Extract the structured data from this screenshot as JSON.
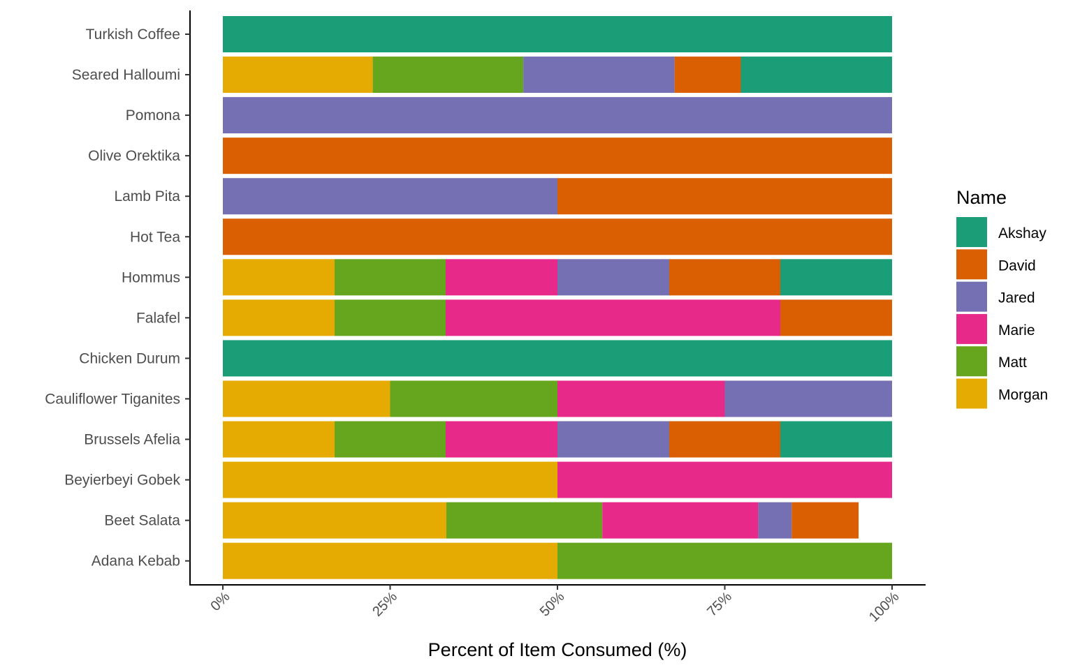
{
  "chart_data": {
    "type": "bar",
    "orientation": "horizontal",
    "stacked": "percent",
    "xlabel": "Percent of Item Consumed (%)",
    "ylabel": "",
    "xlim": [
      0,
      100
    ],
    "x_ticks": [
      0,
      25,
      50,
      75,
      100
    ],
    "x_tick_labels": [
      "0%",
      "25%",
      "50%",
      "75%",
      "100%"
    ],
    "grid": false,
    "legend": {
      "title": "Name",
      "position": "right"
    },
    "stack_order": [
      "Morgan",
      "Matt",
      "Marie",
      "Jared",
      "David",
      "Akshay"
    ],
    "categories": [
      "Turkish Coffee",
      "Seared Halloumi",
      "Pomona",
      "Olive Orektika",
      "Lamb Pita",
      "Hot Tea",
      "Hommus",
      "Falafel",
      "Chicken Durum",
      "Cauliflower Tiganites",
      "Brussels Afelia",
      "Beyierbeyi Gobek",
      "Beet Salata",
      "Adana Kebab"
    ],
    "series": [
      {
        "name": "Akshay",
        "color": "#1b9e77",
        "values": [
          100,
          22.6,
          0,
          0,
          0,
          0,
          16.7,
          0,
          100,
          0,
          16.7,
          0,
          0,
          0
        ]
      },
      {
        "name": "David",
        "color": "#d95f02",
        "values": [
          0,
          9.9,
          0,
          100,
          50,
          100,
          16.6,
          16.7,
          0,
          0,
          16.6,
          0,
          10,
          0
        ]
      },
      {
        "name": "Jared",
        "color": "#7570b3",
        "values": [
          0,
          22.6,
          100,
          0,
          50,
          0,
          16.7,
          0,
          0,
          25,
          16.7,
          0,
          5,
          0
        ]
      },
      {
        "name": "Marie",
        "color": "#e7298a",
        "values": [
          0,
          0,
          0,
          0,
          0,
          0,
          16.7,
          50,
          0,
          25,
          16.7,
          50,
          23.3,
          0
        ]
      },
      {
        "name": "Matt",
        "color": "#66a61e",
        "values": [
          0,
          22.5,
          0,
          0,
          0,
          0,
          16.6,
          16.6,
          0,
          25,
          16.6,
          0,
          23.3,
          50
        ]
      },
      {
        "name": "Morgan",
        "color": "#e6ab02",
        "values": [
          0,
          22.4,
          0,
          0,
          0,
          0,
          16.7,
          16.7,
          0,
          25,
          16.7,
          50,
          33.4,
          50
        ]
      }
    ]
  }
}
